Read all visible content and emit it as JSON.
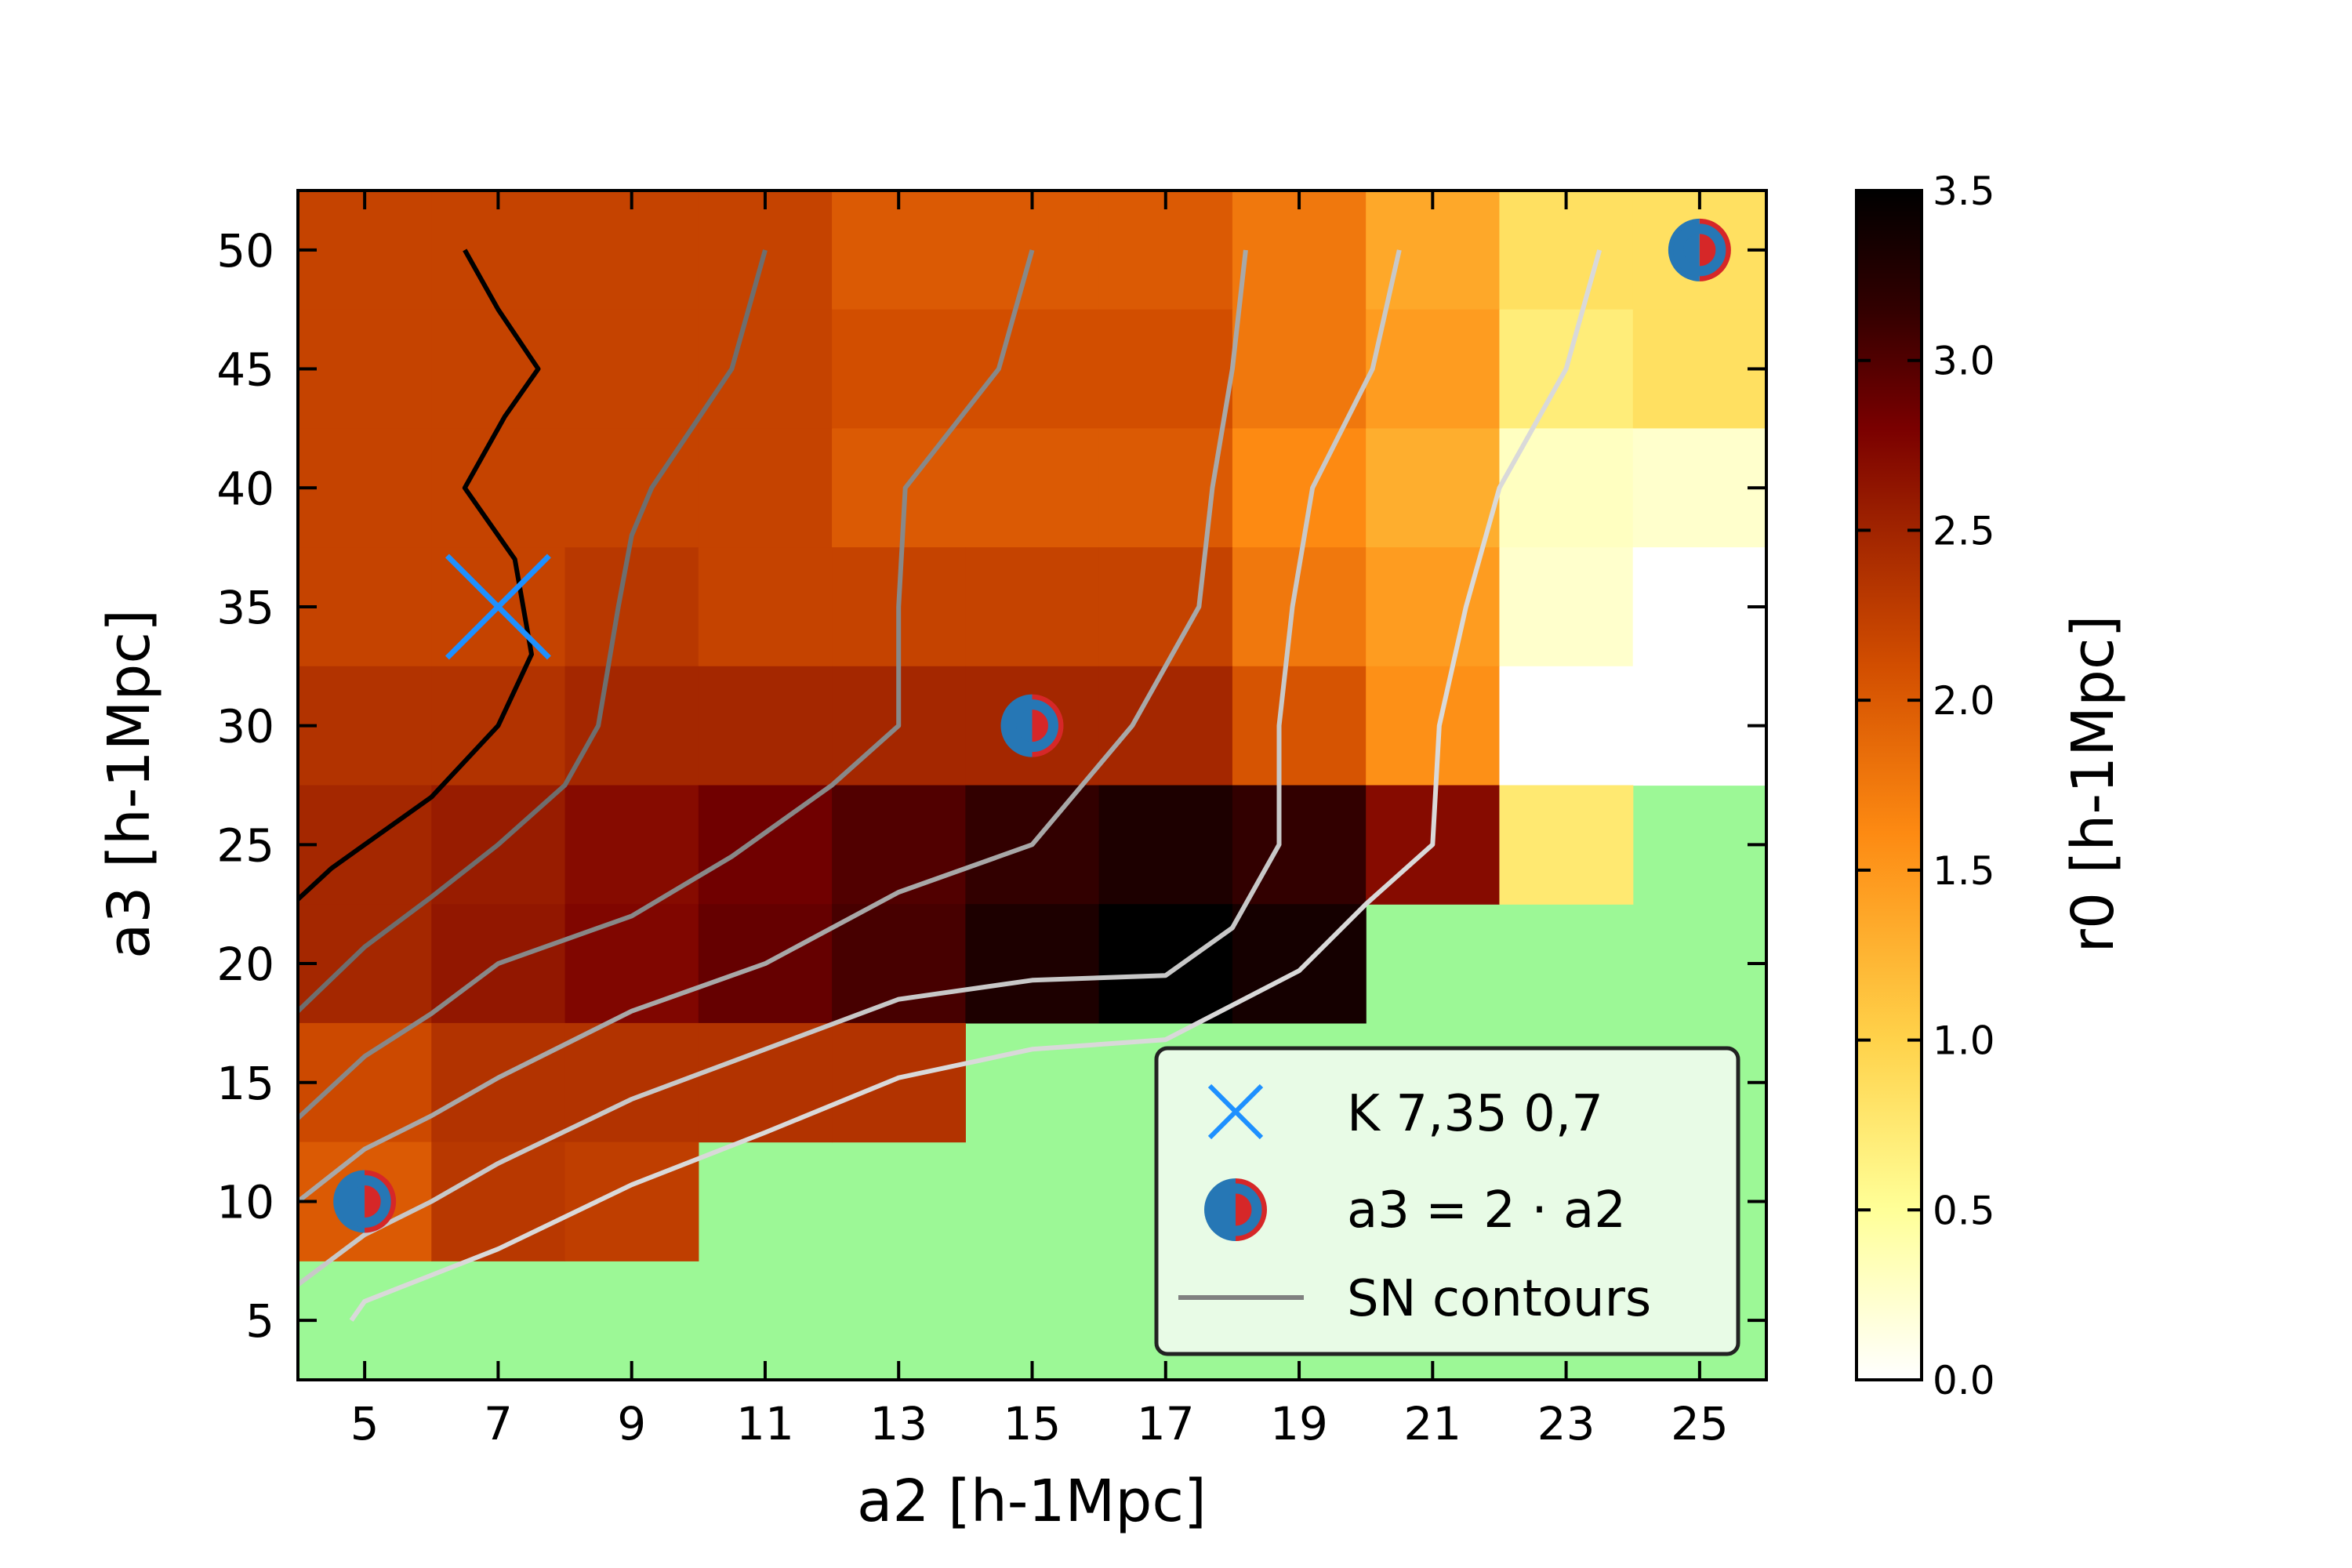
{
  "chart_data": {
    "type": "heatmap",
    "title": "",
    "xlabel": "a2 [h-1Mpc]",
    "ylabel": "a3 [h-1Mpc]",
    "x_values": [
      5,
      7,
      9,
      11,
      13,
      15,
      17,
      19,
      21,
      23,
      25
    ],
    "y_values": [
      50,
      45,
      40,
      35,
      30,
      25,
      20,
      15,
      10,
      5
    ],
    "xlim": [
      4,
      26
    ],
    "ylim": [
      2.5,
      52.5
    ],
    "x_ticks": [
      "5",
      "7",
      "9",
      "11",
      "13",
      "15",
      "17",
      "19",
      "21",
      "23",
      "25"
    ],
    "y_ticks": [
      "5",
      "10",
      "15",
      "20",
      "25",
      "30",
      "35",
      "40",
      "45",
      "50"
    ],
    "missing_color": "#9cf896",
    "z_values": [
      [
        2.2,
        2.2,
        2.2,
        2.2,
        2.0,
        2.0,
        2.0,
        1.75,
        1.35,
        0.85,
        0.85
      ],
      [
        2.2,
        2.2,
        2.2,
        2.2,
        2.1,
        2.1,
        2.1,
        1.75,
        1.45,
        0.7,
        0.85
      ],
      [
        2.2,
        2.2,
        2.2,
        2.2,
        2.0,
        2.0,
        2.0,
        1.6,
        1.3,
        0.3,
        0.25
      ],
      [
        2.2,
        2.2,
        2.3,
        2.2,
        2.2,
        2.2,
        2.2,
        1.75,
        1.45,
        0.25,
        0.0
      ],
      [
        2.35,
        2.35,
        2.45,
        2.45,
        2.45,
        2.45,
        2.45,
        2.05,
        1.55,
        0.0,
        0.0
      ],
      [
        2.45,
        2.55,
        2.7,
        2.85,
        3.0,
        3.15,
        3.3,
        3.15,
        2.7,
        0.75,
        null
      ],
      [
        2.45,
        2.6,
        2.75,
        2.9,
        3.05,
        3.3,
        3.5,
        3.35,
        null,
        null,
        null
      ],
      [
        2.15,
        2.35,
        2.35,
        2.35,
        2.35,
        null,
        null,
        null,
        null,
        null,
        null
      ],
      [
        2.0,
        2.3,
        2.25,
        null,
        null,
        null,
        null,
        null,
        null,
        null,
        null
      ],
      [
        null,
        null,
        null,
        null,
        null,
        null,
        null,
        null,
        null,
        null,
        null
      ]
    ],
    "colorbar": {
      "label": "r0 [h-1Mpc]",
      "colormap": "afmhot_r",
      "range": [
        0.0,
        3.5
      ],
      "ticks": [
        "0.0",
        "0.5",
        "1.0",
        "1.5",
        "2.0",
        "2.5",
        "3.0",
        "3.5"
      ],
      "tick_values": [
        0.0,
        0.5,
        1.0,
        1.5,
        2.0,
        2.5,
        3.0,
        3.5
      ]
    },
    "contours": [
      {
        "color": "#000000",
        "points": [
          [
            4,
            22.7
          ],
          [
            4.5,
            24
          ],
          [
            5,
            25
          ],
          [
            6,
            27
          ],
          [
            7,
            30
          ],
          [
            7.5,
            33
          ],
          [
            7.25,
            37
          ],
          [
            6.5,
            40
          ],
          [
            7.1,
            43
          ],
          [
            7.6,
            45
          ],
          [
            7,
            47.5
          ],
          [
            6.5,
            50
          ]
        ]
      },
      {
        "color": "#6e6e6e",
        "points": [
          [
            4,
            18
          ],
          [
            5,
            20.7
          ],
          [
            6,
            22.8
          ],
          [
            7,
            25
          ],
          [
            8,
            27.5
          ],
          [
            8.5,
            30
          ],
          [
            8.8,
            35
          ],
          [
            9,
            38
          ],
          [
            9.3,
            40
          ],
          [
            10.5,
            45
          ],
          [
            11,
            50
          ]
        ]
      },
      {
        "color": "#888888",
        "points": [
          [
            4,
            13.5
          ],
          [
            5,
            16.1
          ],
          [
            6,
            17.9
          ],
          [
            7,
            20
          ],
          [
            9,
            22
          ],
          [
            10.5,
            24.5
          ],
          [
            12,
            27.5
          ],
          [
            13,
            30
          ],
          [
            13,
            35
          ],
          [
            13.1,
            40
          ],
          [
            14.5,
            45
          ],
          [
            15,
            50
          ]
        ]
      },
      {
        "color": "#a8a8a8",
        "points": [
          [
            4,
            10
          ],
          [
            5,
            12.2
          ],
          [
            6,
            13.6
          ],
          [
            7,
            15.2
          ],
          [
            9,
            18
          ],
          [
            11,
            20
          ],
          [
            13,
            23
          ],
          [
            15,
            25
          ],
          [
            16.5,
            30
          ],
          [
            17.5,
            35
          ],
          [
            17.7,
            40
          ],
          [
            18,
            45
          ],
          [
            18.2,
            50
          ]
        ]
      },
      {
        "color": "#c8c8c8",
        "points": [
          [
            4,
            6.5
          ],
          [
            5,
            8.6
          ],
          [
            6,
            10
          ],
          [
            7,
            11.6
          ],
          [
            9,
            14.3
          ],
          [
            11,
            16.4
          ],
          [
            13,
            18.5
          ],
          [
            15,
            19.3
          ],
          [
            17,
            19.5
          ],
          [
            18,
            21.5
          ],
          [
            18.7,
            25
          ],
          [
            18.7,
            30
          ],
          [
            18.9,
            35
          ],
          [
            19.2,
            40
          ],
          [
            20.1,
            45
          ],
          [
            20.5,
            50
          ]
        ]
      },
      {
        "color": "#d9d9d9",
        "points": [
          [
            4.8,
            5
          ],
          [
            5,
            5.8
          ],
          [
            6,
            6.9
          ],
          [
            7,
            8
          ],
          [
            9,
            10.7
          ],
          [
            11,
            12.9
          ],
          [
            13,
            15.2
          ],
          [
            15,
            16.4
          ],
          [
            17,
            16.8
          ],
          [
            19,
            19.7
          ],
          [
            20,
            22.5
          ],
          [
            21,
            25
          ],
          [
            21.1,
            30
          ],
          [
            21.5,
            35
          ],
          [
            22,
            40
          ],
          [
            23,
            45
          ],
          [
            23.5,
            50
          ]
        ]
      }
    ],
    "markers": {
      "cross": {
        "x": 7,
        "y": 35,
        "color": "#1e90ff",
        "label": "K 7,35 0,7"
      },
      "half_circles": {
        "label": "a3 = 2 · a2",
        "left_color": "#2677b5",
        "right_color": "#d62728",
        "points": [
          [
            5,
            10
          ],
          [
            15,
            30
          ],
          [
            25,
            50
          ]
        ]
      }
    },
    "legend": {
      "placement": "lower-right",
      "entries": [
        "K 7,35 0,7",
        "a3 = 2 · a2",
        "SN contours"
      ],
      "line_color": "#808080"
    }
  }
}
